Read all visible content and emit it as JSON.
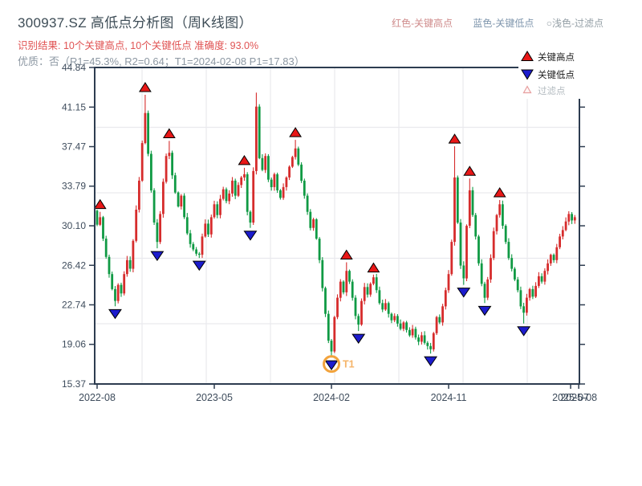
{
  "header": {
    "title": "300937.SZ 高低点分析图（周K线图）",
    "result_line": "识别结果: 10个关键高点, 10个关键低点  准确度: 93.0%",
    "quality_line": "优质：否（R1=45.3%, R2=0.64；T1=2024-02-08 P1=17.83）",
    "legend_note": {
      "red": "红色-关键高点",
      "blue": "蓝色-关键低点",
      "filter": "○浅色-过滤点"
    }
  },
  "legend": {
    "high_label": "关键高点",
    "low_label": "关键低点",
    "filter_label": "过滤点"
  },
  "colors": {
    "up_candle": "#d62c2c",
    "down_candle": "#109a44",
    "key_high_marker": "#e81717",
    "key_low_marker": "#1c1ccd",
    "marker_outline": "#000000",
    "filter_marker_edge": "#e79f9f",
    "t1_ring": "#f2a33c",
    "t1_text": "#f5b469",
    "spine": "#2d3c50",
    "grid": "#e9e9ed",
    "tick_label": "#3e4c5c",
    "legend_text": "#1c1c1c",
    "legend_muted": "#b3bbc0"
  },
  "chart_data": {
    "type": "candlestick",
    "freq": "weekly",
    "title": "300937.SZ 高低点分析图（周K线图）",
    "ylim": [
      15.37,
      44.84
    ],
    "grid": true,
    "legend_position": "top-right",
    "y_ticks": [
      "44.84",
      "41.15",
      "37.47",
      "33.79",
      "30.10",
      "26.42",
      "22.74",
      "19.06",
      "15.37"
    ],
    "y_tick_values": [
      44.84,
      41.15,
      37.47,
      33.79,
      30.1,
      26.42,
      22.74,
      19.06,
      15.37
    ],
    "x_ticks": [
      {
        "label": "2022-08",
        "week": 0
      },
      {
        "label": "2023-05",
        "week": 39
      },
      {
        "label": "2024-02",
        "week": 78
      },
      {
        "label": "2024-11",
        "week": 117
      },
      {
        "label": "2025-07",
        "week": 157.6
      },
      {
        "label": "2025-08",
        "week": 160.3
      }
    ],
    "first_open": 31.5,
    "closes": [
      30.2,
      30.9,
      28.9,
      27.2,
      25.6,
      24.2,
      23.1,
      24.6,
      23.8,
      25.6,
      26.9,
      26.1,
      28.7,
      31.6,
      34.3,
      37.8,
      40.6,
      36.8,
      33.4,
      30.4,
      28.6,
      31.2,
      34.2,
      36.6,
      36.9,
      34.8,
      33.2,
      31.9,
      32.9,
      30.9,
      29.4,
      28.4,
      27.9,
      27.5,
      27.4,
      29.1,
      30.3,
      29.3,
      30.9,
      32.1,
      31.1,
      32.6,
      33.5,
      32.4,
      33.1,
      34.3,
      32.9,
      33.9,
      34.6,
      34.9,
      31.4,
      30.4,
      35.2,
      41.2,
      36.4,
      35.3,
      36.6,
      34.4,
      33.7,
      34.9,
      33.4,
      32.7,
      33.7,
      34.6,
      35.6,
      36.5,
      37.3,
      35.8,
      34.3,
      32.9,
      31.4,
      29.9,
      30.7,
      28.9,
      26.9,
      24.3,
      21.9,
      19.4,
      18.4,
      21.6,
      23.4,
      24.9,
      23.9,
      25.9,
      24.9,
      23.4,
      21.7,
      20.9,
      23.1,
      24.4,
      23.7,
      24.7,
      25.3,
      24.1,
      22.9,
      22.3,
      22.9,
      21.9,
      21.3,
      21.7,
      21.0,
      20.5,
      21.1,
      20.4,
      19.9,
      20.5,
      19.7,
      19.3,
      19.9,
      19.2,
      18.9,
      18.6,
      20.1,
      21.6,
      21.1,
      22.6,
      24.1,
      25.6,
      28.6,
      34.6,
      30.4,
      26.4,
      25.2,
      30.1,
      33.4,
      31.1,
      29.1,
      26.6,
      24.7,
      23.4,
      25.1,
      27.1,
      29.6,
      31.1,
      32.1,
      30.1,
      28.6,
      27.1,
      26.1,
      25.1,
      24.1,
      22.6,
      22.0,
      23.4,
      24.2,
      23.5,
      24.5,
      25.4,
      24.9,
      25.9,
      26.6,
      27.4,
      26.9,
      28.1,
      29.1,
      29.7,
      30.5,
      31.2,
      30.6,
      30.9
    ],
    "key_highs": [
      {
        "week": 1,
        "price": 31.4
      },
      {
        "week": 16,
        "price": 42.3
      },
      {
        "week": 24,
        "price": 38.0
      },
      {
        "week": 49,
        "price": 35.5
      },
      {
        "week": 66,
        "price": 38.1
      },
      {
        "week": 83,
        "price": 26.7
      },
      {
        "week": 92,
        "price": 25.5
      },
      {
        "week": 119,
        "price": 37.5
      },
      {
        "week": 124,
        "price": 34.5
      },
      {
        "week": 134,
        "price": 32.5
      }
    ],
    "key_lows": [
      {
        "week": 6,
        "price": 22.6
      },
      {
        "week": 20,
        "price": 28.0
      },
      {
        "week": 34,
        "price": 27.1
      },
      {
        "week": 51,
        "price": 29.9
      },
      {
        "week": 78,
        "price": 17.83
      },
      {
        "week": 87,
        "price": 20.3
      },
      {
        "week": 111,
        "price": 18.2
      },
      {
        "week": 122,
        "price": 24.6
      },
      {
        "week": 129,
        "price": 22.9
      },
      {
        "week": 142,
        "price": 21.0
      }
    ],
    "extra_wick_highs": {
      "53": 42.5
    },
    "t1_annotation": {
      "week": 78,
      "price": 17.83,
      "label": "T1"
    }
  }
}
